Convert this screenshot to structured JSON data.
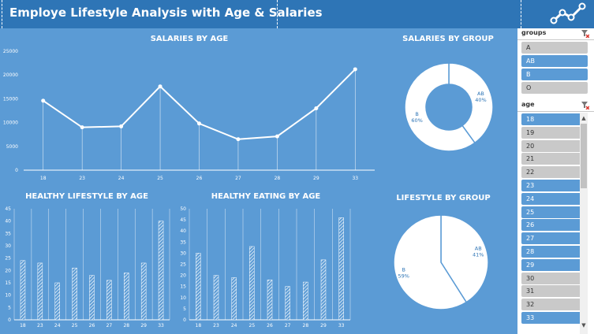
{
  "header": {
    "title": "Employe Lifestyle Analysis with Age & Salaries",
    "logo_icon": "line-chart-icon"
  },
  "colors": {
    "background": "#5b9bd5",
    "header": "#2e75b6",
    "selected": "#5b9bd5",
    "unselected": "#c9c9c9"
  },
  "filters": {
    "groups": {
      "title": "groups",
      "clear_icon": "clear-filter-icon",
      "items": [
        {
          "label": "A",
          "selected": false
        },
        {
          "label": "AB",
          "selected": true
        },
        {
          "label": "B",
          "selected": true
        },
        {
          "label": "O",
          "selected": false
        }
      ]
    },
    "age": {
      "title": "age",
      "clear_icon": "clear-filter-icon",
      "items": [
        {
          "label": "18",
          "selected": true
        },
        {
          "label": "19",
          "selected": false
        },
        {
          "label": "20",
          "selected": false
        },
        {
          "label": "21",
          "selected": false
        },
        {
          "label": "22",
          "selected": false
        },
        {
          "label": "23",
          "selected": true
        },
        {
          "label": "24",
          "selected": true
        },
        {
          "label": "25",
          "selected": true
        },
        {
          "label": "26",
          "selected": true
        },
        {
          "label": "27",
          "selected": true
        },
        {
          "label": "28",
          "selected": true
        },
        {
          "label": "29",
          "selected": true
        },
        {
          "label": "30",
          "selected": false
        },
        {
          "label": "31",
          "selected": false
        },
        {
          "label": "32",
          "selected": false
        },
        {
          "label": "33",
          "selected": true
        }
      ]
    }
  },
  "chart_data": [
    {
      "type": "line",
      "title": "SALARIES BY AGE",
      "categories": [
        "18",
        "23",
        "24",
        "25",
        "26",
        "27",
        "28",
        "29",
        "33"
      ],
      "values": [
        14600,
        9000,
        9200,
        17600,
        9800,
        6500,
        7100,
        13000,
        21200
      ],
      "yticks": [
        0,
        5000,
        10000,
        15000,
        20000,
        25000
      ],
      "ylim": [
        0,
        25000
      ],
      "grid": false,
      "legend": "none"
    },
    {
      "type": "bar",
      "title": "HEALTHY LIFESTYLE BY AGE",
      "categories": [
        "18",
        "23",
        "24",
        "25",
        "26",
        "27",
        "28",
        "29",
        "33"
      ],
      "values": [
        24,
        23,
        15,
        21,
        18,
        16,
        19,
        23,
        40
      ],
      "yticks": [
        0,
        5,
        10,
        15,
        20,
        25,
        30,
        35,
        40,
        45
      ],
      "ylim": [
        0,
        45
      ],
      "grid": true,
      "legend": "none"
    },
    {
      "type": "bar",
      "title": "HEALTHY EATING BY AGE",
      "categories": [
        "18",
        "23",
        "24",
        "25",
        "26",
        "27",
        "28",
        "29",
        "33"
      ],
      "values": [
        30,
        20,
        19,
        33,
        18,
        15,
        17,
        27,
        46
      ],
      "yticks": [
        0,
        5,
        10,
        15,
        20,
        25,
        30,
        35,
        40,
        45,
        50
      ],
      "ylim": [
        0,
        50
      ],
      "grid": true,
      "legend": "none"
    },
    {
      "type": "pie",
      "variant": "doughnut",
      "title": "SALARIES BY GROUP",
      "slices": [
        {
          "label": "AB",
          "value": 40,
          "text": "40%"
        },
        {
          "label": "B",
          "value": 60,
          "text": "60%"
        }
      ],
      "legend": "none"
    },
    {
      "type": "pie",
      "title": "LIFESTYLE BY GROUP",
      "slices": [
        {
          "label": "AB",
          "value": 41,
          "text": "41%"
        },
        {
          "label": "B",
          "value": 59,
          "text": "59%"
        }
      ],
      "legend": "none"
    }
  ]
}
